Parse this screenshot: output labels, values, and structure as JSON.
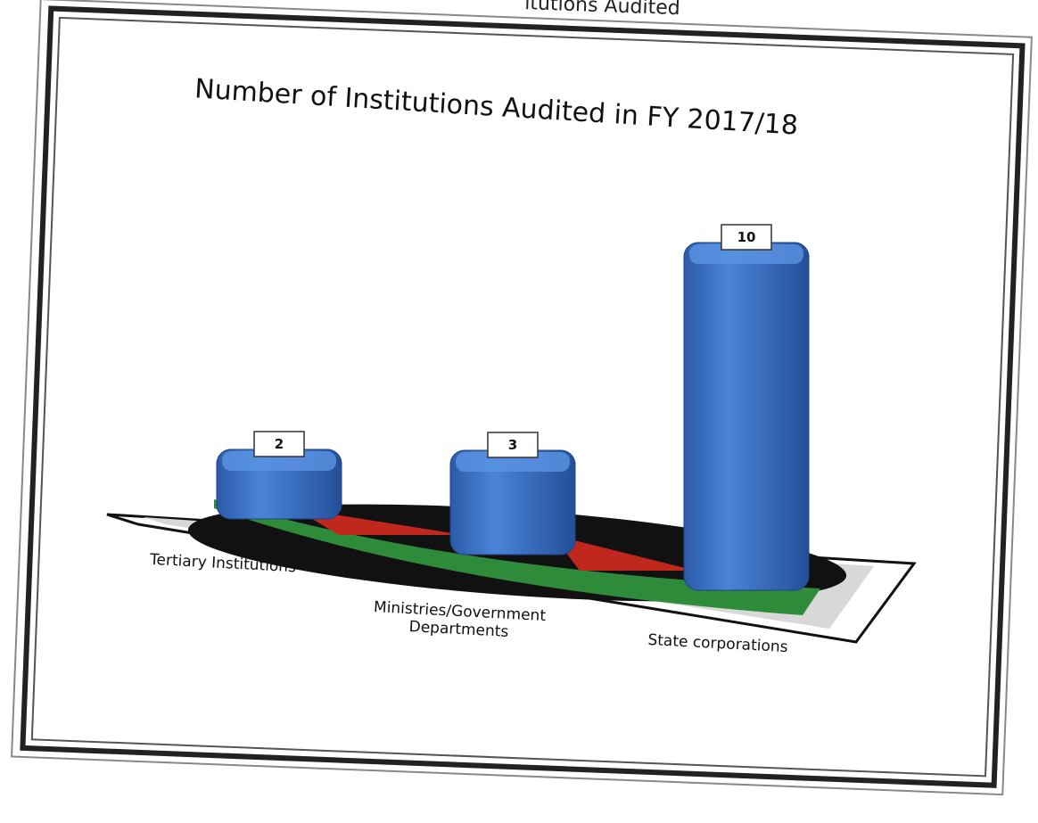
{
  "page_fragment": "itutions Audited",
  "chart_data": {
    "type": "bar3d",
    "title": "Number of Institutions Audited in FY 2017/18",
    "categories": [
      "Tertiary Institutions",
      "Ministries/Government Departments",
      "State corporations"
    ],
    "values": [
      2,
      3,
      10
    ],
    "color": "#3a6fc4"
  }
}
